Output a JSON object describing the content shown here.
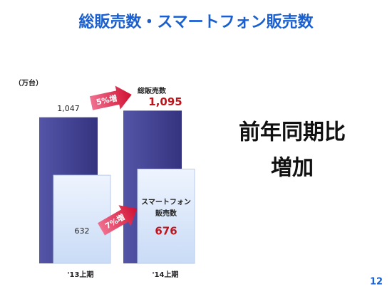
{
  "chart_data": {
    "type": "bar",
    "title": "総販売数・スマートフォン販売数",
    "unit_label": "（万台）",
    "categories": [
      "'13上期",
      "'14上期"
    ],
    "series": [
      {
        "name": "総販売数",
        "color": "#3f3f94",
        "values": [
          1047,
          1095
        ],
        "value_labels": [
          "1,047",
          "1,095"
        ]
      },
      {
        "name": "スマートフォン販売数",
        "color": "#dbe7fb",
        "values": [
          632,
          676
        ]
      }
    ],
    "series_labels": [
      [
        "総販売数"
      ],
      [
        "スマートフォン",
        "販売数"
      ]
    ],
    "growth_labels": [
      "5%増",
      "7%増"
    ],
    "highlight_color": "#c0141c",
    "message": [
      "前年同期比",
      "増加"
    ],
    "page_number": "12"
  }
}
